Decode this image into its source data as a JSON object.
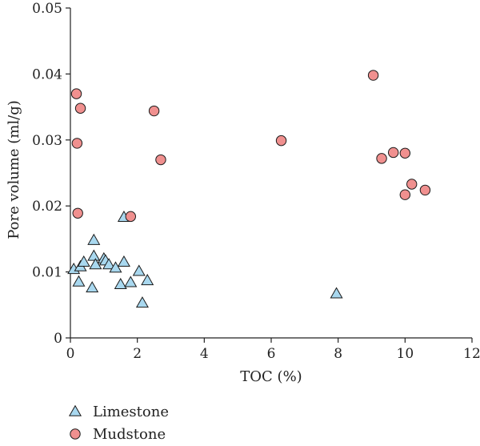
{
  "chart_data": {
    "type": "scatter",
    "xlabel": "TOC (%)",
    "ylabel": "Pore volume (ml/g)",
    "xlim": [
      0,
      12
    ],
    "ylim": [
      0,
      0.05
    ],
    "x_ticks": [
      0,
      2,
      4,
      6,
      8,
      10,
      12
    ],
    "y_ticks": [
      0,
      0.01,
      0.02,
      0.03,
      0.04,
      0.05
    ],
    "x_tick_labels": [
      "0",
      "2",
      "4",
      "6",
      "8",
      "10",
      "12"
    ],
    "y_tick_labels": [
      "0",
      "0.01",
      "0.02",
      "0.03",
      "0.04",
      "0.05"
    ],
    "grid": false,
    "legend_position": "bottom-left",
    "series": [
      {
        "name": "Limestone",
        "marker": "triangle",
        "color": "#a9d8ef",
        "points": [
          [
            0.1,
            0.0104
          ],
          [
            0.25,
            0.0085
          ],
          [
            0.3,
            0.0108
          ],
          [
            0.4,
            0.0115
          ],
          [
            0.65,
            0.0076
          ],
          [
            0.7,
            0.0148
          ],
          [
            0.7,
            0.0124
          ],
          [
            0.75,
            0.0111
          ],
          [
            1.0,
            0.012
          ],
          [
            1.05,
            0.0117
          ],
          [
            1.15,
            0.0111
          ],
          [
            1.35,
            0.0106
          ],
          [
            1.5,
            0.0081
          ],
          [
            1.6,
            0.0115
          ],
          [
            1.6,
            0.0183
          ],
          [
            1.8,
            0.0084
          ],
          [
            2.05,
            0.0101
          ],
          [
            2.15,
            0.0053
          ],
          [
            2.3,
            0.0087
          ],
          [
            7.95,
            0.0067
          ]
        ]
      },
      {
        "name": "Mudstone",
        "marker": "circle",
        "color": "#f0908f",
        "points": [
          [
            0.18,
            0.037
          ],
          [
            0.3,
            0.0348
          ],
          [
            0.2,
            0.0295
          ],
          [
            0.22,
            0.0189
          ],
          [
            1.8,
            0.0184
          ],
          [
            2.5,
            0.0344
          ],
          [
            2.7,
            0.027
          ],
          [
            6.3,
            0.0299
          ],
          [
            9.05,
            0.0398
          ],
          [
            9.3,
            0.0272
          ],
          [
            9.65,
            0.0281
          ],
          [
            10.0,
            0.028
          ],
          [
            10.2,
            0.0233
          ],
          [
            10.0,
            0.0217
          ],
          [
            10.6,
            0.0224
          ]
        ]
      }
    ]
  }
}
